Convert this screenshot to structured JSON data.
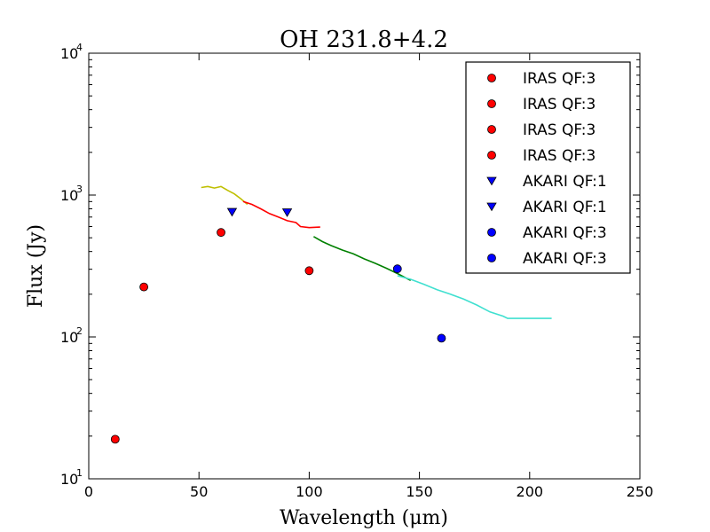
{
  "chart_data": {
    "type": "scatter",
    "title": "OH 231.8+4.2",
    "xlabel": "Wavelength (μm)",
    "ylabel": "Flux (Jy)",
    "xlim": [
      0,
      250
    ],
    "ylim": [
      10,
      10000
    ],
    "yscale": "log",
    "x_ticks": [
      0,
      50,
      100,
      150,
      200,
      250
    ],
    "y_ticks": [
      {
        "value": 10,
        "base": "10",
        "exp": "1"
      },
      {
        "value": 100,
        "base": "10",
        "exp": "2"
      },
      {
        "value": 1000,
        "base": "10",
        "exp": "3"
      },
      {
        "value": 10000,
        "base": "10",
        "exp": "4"
      }
    ],
    "legend_position": "top-right",
    "points": [
      {
        "name": "IRAS QF:3",
        "marker": "circle",
        "color": "#ff0000",
        "x": 12,
        "y": 19
      },
      {
        "name": "IRAS QF:3",
        "marker": "circle",
        "color": "#ff0000",
        "x": 25,
        "y": 225
      },
      {
        "name": "IRAS QF:3",
        "marker": "circle",
        "color": "#ff0000",
        "x": 60,
        "y": 545
      },
      {
        "name": "IRAS QF:3",
        "marker": "circle",
        "color": "#ff0000",
        "x": 100,
        "y": 293
      },
      {
        "name": "AKARI QF:1",
        "marker": "triangle-down",
        "color": "#0000ff",
        "x": 65,
        "y": 760
      },
      {
        "name": "AKARI QF:1",
        "marker": "triangle-down",
        "color": "#0000ff",
        "x": 90,
        "y": 755
      },
      {
        "name": "AKARI QF:3",
        "marker": "circle",
        "color": "#0000ff",
        "x": 140,
        "y": 302
      },
      {
        "name": "AKARI QF:3",
        "marker": "circle",
        "color": "#0000ff",
        "x": 160,
        "y": 98
      }
    ],
    "spectra": [
      {
        "name": "spectrum-segment-1",
        "color": "#bfbf00",
        "x": [
          51,
          54,
          57,
          60,
          63,
          66,
          69,
          72
        ],
        "y": [
          1130,
          1150,
          1120,
          1150,
          1080,
          1020,
          940,
          860
        ]
      },
      {
        "name": "spectrum-segment-2",
        "color": "#ff0000",
        "x": [
          70,
          74,
          78,
          82,
          86,
          90,
          94,
          96,
          100,
          105
        ],
        "y": [
          900,
          860,
          800,
          740,
          700,
          660,
          640,
          600,
          590,
          595
        ]
      },
      {
        "name": "spectrum-segment-3",
        "color": "#008000",
        "x": [
          102,
          106,
          110,
          115,
          120,
          125,
          130,
          135,
          140,
          146
        ],
        "y": [
          510,
          470,
          440,
          410,
          385,
          355,
          330,
          305,
          280,
          250
        ]
      },
      {
        "name": "spectrum-segment-4",
        "color": "#40e0d0",
        "x": [
          140,
          146,
          152,
          158,
          164,
          170,
          176,
          182,
          188,
          190,
          200,
          210
        ],
        "y": [
          270,
          255,
          235,
          215,
          200,
          185,
          168,
          150,
          140,
          135,
          135,
          135
        ]
      }
    ],
    "legend_entries": [
      {
        "label": "IRAS QF:3",
        "marker": "circle",
        "color": "#ff0000"
      },
      {
        "label": "IRAS QF:3",
        "marker": "circle",
        "color": "#ff0000"
      },
      {
        "label": "IRAS QF:3",
        "marker": "circle",
        "color": "#ff0000"
      },
      {
        "label": "IRAS QF:3",
        "marker": "circle",
        "color": "#ff0000"
      },
      {
        "label": "AKARI QF:1",
        "marker": "triangle-down",
        "color": "#0000ff"
      },
      {
        "label": "AKARI QF:1",
        "marker": "triangle-down",
        "color": "#0000ff"
      },
      {
        "label": "AKARI QF:3",
        "marker": "circle",
        "color": "#0000ff"
      },
      {
        "label": "AKARI QF:3",
        "marker": "circle",
        "color": "#0000ff"
      }
    ]
  }
}
